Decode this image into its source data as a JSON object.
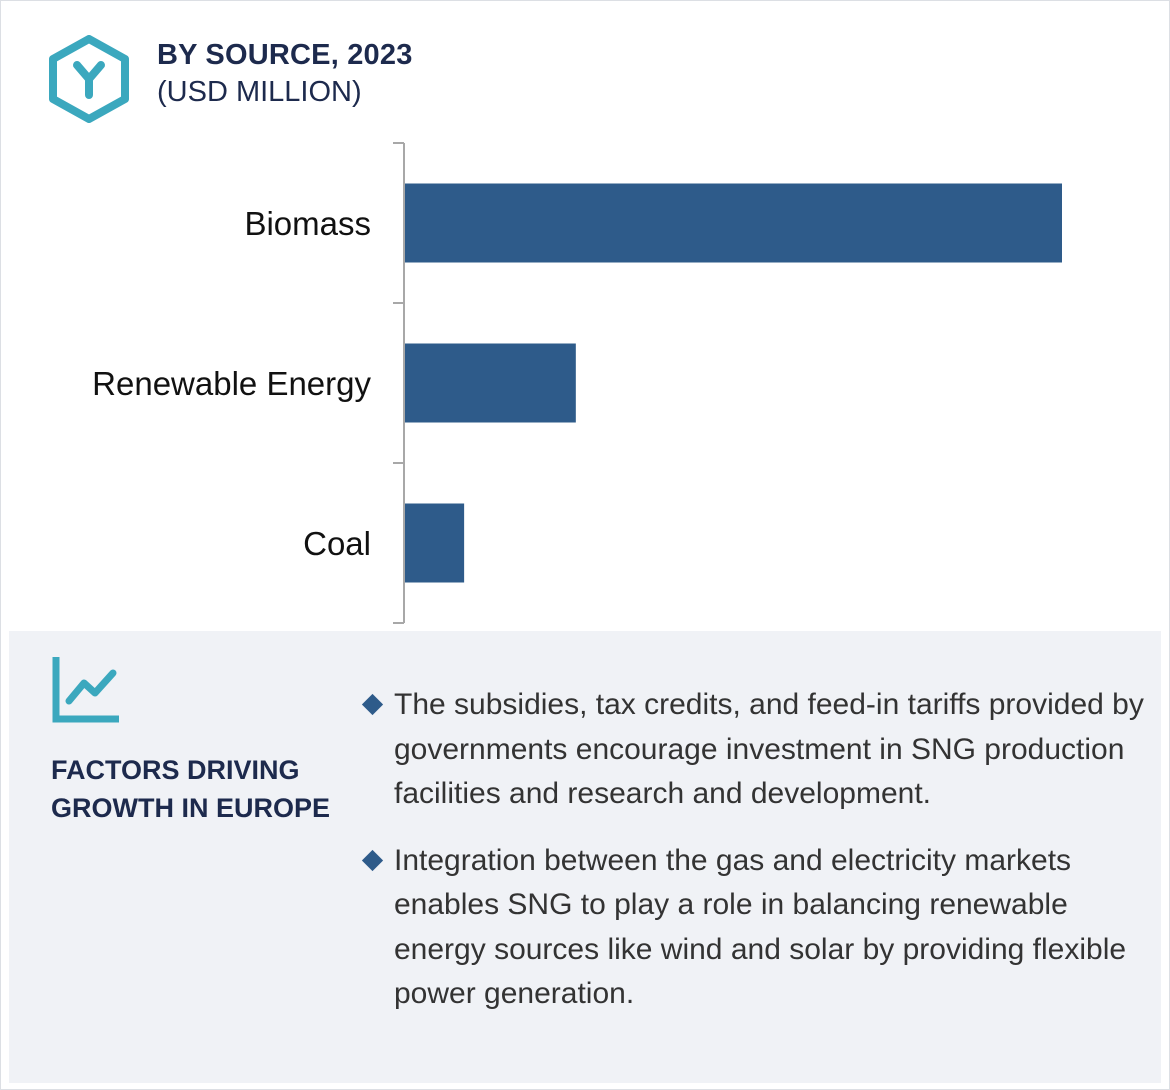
{
  "header": {
    "title": "BY SOURCE, 2023",
    "subtitle": "(USD MILLION)",
    "logo_icon": "hexagon-y-logo-icon"
  },
  "colors": {
    "bar": "#2e5b8a",
    "accent": "#3ba8be",
    "heading": "#1d2a4d",
    "panel_bg": "#f0f2f6"
  },
  "chart_data": {
    "type": "bar",
    "orientation": "horizontal",
    "categories": [
      "Biomass",
      "Renewable Energy",
      "Coal"
    ],
    "values": [
      100,
      26,
      9
    ],
    "xlim": [
      0,
      100
    ],
    "grid": false,
    "legend": "none",
    "value_labels": false
  },
  "factors": {
    "icon": "trend-line-chart-icon",
    "title": "FACTORS DRIVING GROWTH IN EUROPE",
    "bullets": [
      "The subsidies, tax credits, and feed-in tariffs provided by governments encourage investment in SNG production facilities and research and development.",
      "Integration between the gas and electricity markets enables SNG to play a role in balancing renewable energy sources like wind and solar by providing flexible power generation."
    ]
  }
}
